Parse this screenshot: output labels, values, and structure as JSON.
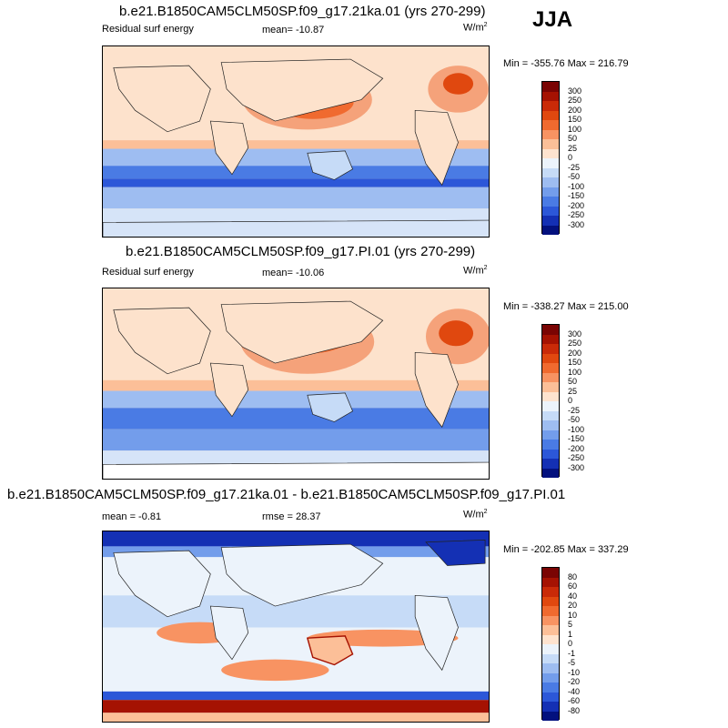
{
  "season": "JJA",
  "panels": [
    {
      "title": "b.e21.B1850CAM5CLM50SP.f09_g17.21ka.01 (yrs 270-299)",
      "left_label": "Residual surf energy",
      "center_label": "mean= -10.87",
      "units": "W/m",
      "units_sup": "2",
      "minmax": "Min = -355.76 Max = 216.79",
      "colorbar_ticks": [
        "300",
        "250",
        "200",
        "150",
        "100",
        "50",
        "25",
        "0",
        "-25",
        "-50",
        "-100",
        "-150",
        "-200",
        "-250",
        "-300"
      ],
      "colorbar_colors": [
        "#7a0403",
        "#a51202",
        "#c92a08",
        "#e0480f",
        "#f06a2f",
        "#f89362",
        "#fcbf98",
        "#fee3cf",
        "#ecf3fb",
        "#c6dbf7",
        "#9ebdf1",
        "#739deb",
        "#4a7be4",
        "#2c57d8",
        "#1430b4",
        "#03117e"
      ]
    },
    {
      "title": "b.e21.B1850CAM5CLM50SP.f09_g17.PI.01 (yrs 270-299)",
      "left_label": "Residual surf energy",
      "center_label": "mean= -10.06",
      "units": "W/m",
      "units_sup": "2",
      "minmax": "Min = -338.27 Max = 215.00",
      "colorbar_ticks": [
        "300",
        "250",
        "200",
        "150",
        "100",
        "50",
        "25",
        "0",
        "-25",
        "-50",
        "-100",
        "-150",
        "-200",
        "-250",
        "-300"
      ],
      "colorbar_colors": [
        "#7a0403",
        "#a51202",
        "#c92a08",
        "#e0480f",
        "#f06a2f",
        "#f89362",
        "#fcbf98",
        "#fee3cf",
        "#ecf3fb",
        "#c6dbf7",
        "#9ebdf1",
        "#739deb",
        "#4a7be4",
        "#2c57d8",
        "#1430b4",
        "#03117e"
      ]
    },
    {
      "title": "b.e21.B1850CAM5CLM50SP.f09_g17.21ka.01 - b.e21.B1850CAM5CLM50SP.f09_g17.PI.01",
      "left_label": "mean =  -0.81",
      "center_label": "rmse =  28.37",
      "units": "W/m",
      "units_sup": "2",
      "minmax": "Min = -202.85 Max = 337.29",
      "colorbar_ticks": [
        "80",
        "60",
        "40",
        "20",
        "10",
        "5",
        "1",
        "0",
        "-1",
        "-5",
        "-10",
        "-20",
        "-40",
        "-60",
        "-80"
      ],
      "colorbar_colors": [
        "#7a0403",
        "#a51202",
        "#c92a08",
        "#e0480f",
        "#f06a2f",
        "#f89362",
        "#fcbf98",
        "#fee3cf",
        "#ecf3fb",
        "#c6dbf7",
        "#9ebdf1",
        "#739deb",
        "#4a7be4",
        "#2c57d8",
        "#1430b4",
        "#03117e"
      ]
    }
  ],
  "chart_data": [
    {
      "type": "heatmap",
      "title": "b.e21.B1850CAM5CLM50SP.f09_g17.21ka.01 (yrs 270-299)",
      "variable": "Residual surf energy",
      "season": "JJA",
      "units": "W/m2",
      "mean": -10.87,
      "min": -355.76,
      "max": 216.79,
      "levels": [
        -300,
        -250,
        -200,
        -150,
        -100,
        -50,
        -25,
        0,
        25,
        50,
        100,
        150,
        200,
        250,
        300
      ]
    },
    {
      "type": "heatmap",
      "title": "b.e21.B1850CAM5CLM50SP.f09_g17.PI.01 (yrs 270-299)",
      "variable": "Residual surf energy",
      "season": "JJA",
      "units": "W/m2",
      "mean": -10.06,
      "min": -338.27,
      "max": 215.0,
      "levels": [
        -300,
        -250,
        -200,
        -150,
        -100,
        -50,
        -25,
        0,
        25,
        50,
        100,
        150,
        200,
        250,
        300
      ]
    },
    {
      "type": "heatmap",
      "title": "b.e21.B1850CAM5CLM50SP.f09_g17.21ka.01 - b.e21.B1850CAM5CLM50SP.f09_g17.PI.01",
      "season": "JJA",
      "units": "W/m2",
      "mean": -0.81,
      "rmse": 28.37,
      "min": -202.85,
      "max": 337.29,
      "levels": [
        -80,
        -60,
        -40,
        -20,
        -10,
        -5,
        -1,
        0,
        1,
        5,
        10,
        20,
        40,
        60,
        80
      ]
    }
  ]
}
